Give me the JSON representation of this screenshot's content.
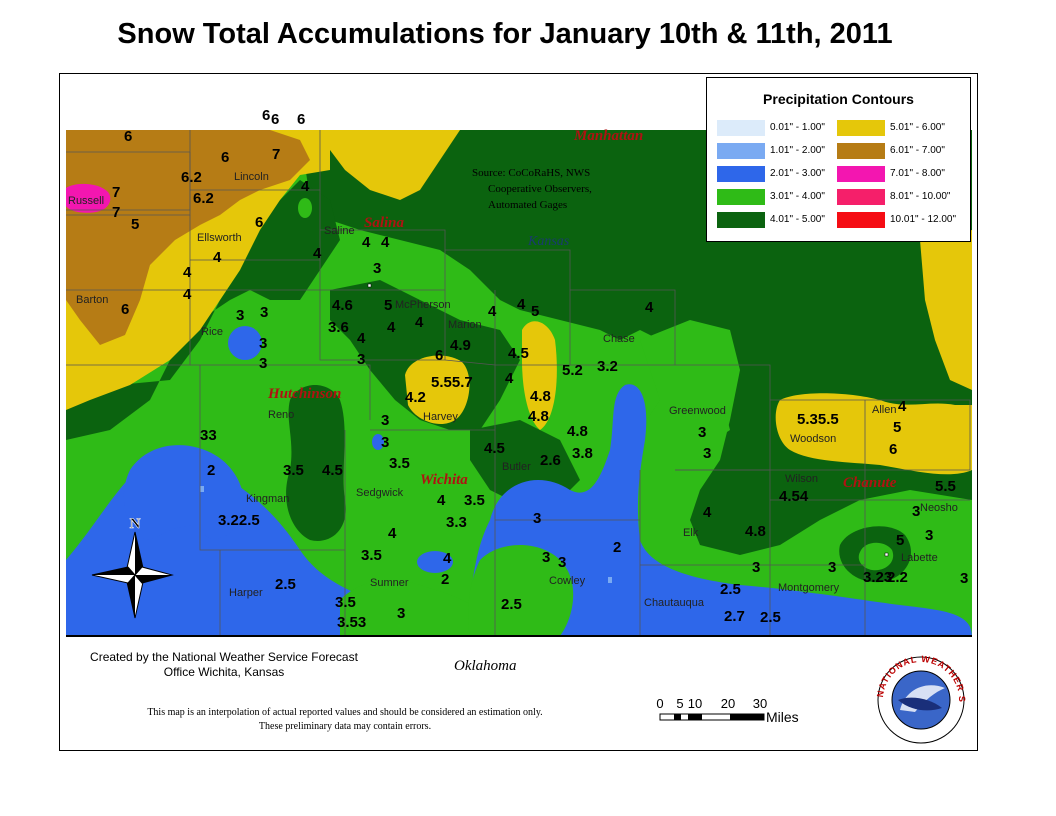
{
  "title": "Snow Total Accumulations for January 10th & 11th, 2011",
  "legend": {
    "title": "Precipitation Contours",
    "items": [
      {
        "label": "0.01\" - 1.00\"",
        "color": "#dcebfa"
      },
      {
        "label": "1.01\" - 2.00\"",
        "color": "#7aaaf2"
      },
      {
        "label": "2.01\" - 3.00\"",
        "color": "#2e67ea"
      },
      {
        "label": "3.01\" - 4.00\"",
        "color": "#2fbb17"
      },
      {
        "label": "4.01\" - 5.00\"",
        "color": "#0b630f"
      },
      {
        "label": "5.01\" - 6.00\"",
        "color": "#e5c70a"
      },
      {
        "label": "6.01\" - 7.00\"",
        "color": "#b67c15"
      },
      {
        "label": "7.01\" - 8.00\"",
        "color": "#f316b0"
      },
      {
        "label": "8.01\" - 10.00\"",
        "color": "#f51f6a"
      },
      {
        "label": "10.01\" - 12.00\"",
        "color": "#f50d14"
      }
    ]
  },
  "source": [
    "Source: CoCoRaHS, NWS",
    "Cooperative Observers,",
    "Automated Gages"
  ],
  "state_labels": {
    "kansas": "Kansas",
    "oklahoma": "Oklahoma"
  },
  "cities": [
    "Manhattan",
    "Salina",
    "Hutchinson",
    "Wichita",
    "Chanute"
  ],
  "counties": [
    "Lincoln",
    "Russell",
    "Ellsworth",
    "Saline",
    "Barton",
    "Rice",
    "McPherson",
    "Marion",
    "Chase",
    "Reno",
    "Harvey",
    "Greenwood",
    "Woodson",
    "Allen",
    "Butler",
    "Wilson",
    "Neosho",
    "Kingman",
    "Sedgwick",
    "Elk",
    "Labette",
    "Harper",
    "Sumner",
    "Cowley",
    "Chautauqua",
    "Montgomery"
  ],
  "snow_values": [
    "6",
    "6",
    "6",
    "6",
    "7",
    "6",
    "6.2",
    "6.2",
    "7",
    "7",
    "5",
    "4",
    "6",
    "4",
    "4",
    "4",
    "4",
    "4",
    "3",
    "4",
    "6",
    "4",
    "3",
    "3",
    "3",
    "3",
    "4.6",
    "5",
    "4",
    "4",
    "4",
    "5",
    "3.6",
    "4",
    "4.9",
    "4.5",
    "4",
    "3",
    "6",
    "5.55.7",
    "4.2",
    "4",
    "5.2",
    "3.2",
    "4.8",
    "4.8",
    "4.8",
    "4.5",
    "2.6",
    "3.8",
    "5.35.5",
    "4",
    "5",
    "6",
    "33",
    "3",
    "3",
    "3.5",
    "4.5",
    "4",
    "3.5",
    "3.5",
    "3",
    "3.3",
    "4",
    "4.54",
    "4.8",
    "5.5",
    "3",
    "2",
    "3.22.5",
    "4",
    "3.5",
    "4",
    "2",
    "3",
    "3",
    "2",
    "3",
    "3",
    "5",
    "3",
    "3",
    "3",
    "3.23",
    "2.2",
    "2.5",
    "3.5",
    "3.53",
    "3",
    "2.5",
    "2.5",
    "2.7",
    "2.5"
  ],
  "north_label": "N",
  "credit": [
    "Created by the National Weather Service Forecast",
    "Office Wichita, Kansas"
  ],
  "note": [
    "This map is an interpolation of actual reported values and should be considered an estimation only.",
    "These preliminary data may contain errors."
  ],
  "scale": {
    "ticks": [
      "0",
      "5",
      "10",
      "20",
      "30"
    ],
    "unit": "Miles"
  },
  "logo_text": "NATIONAL WEATHER SERVICE"
}
